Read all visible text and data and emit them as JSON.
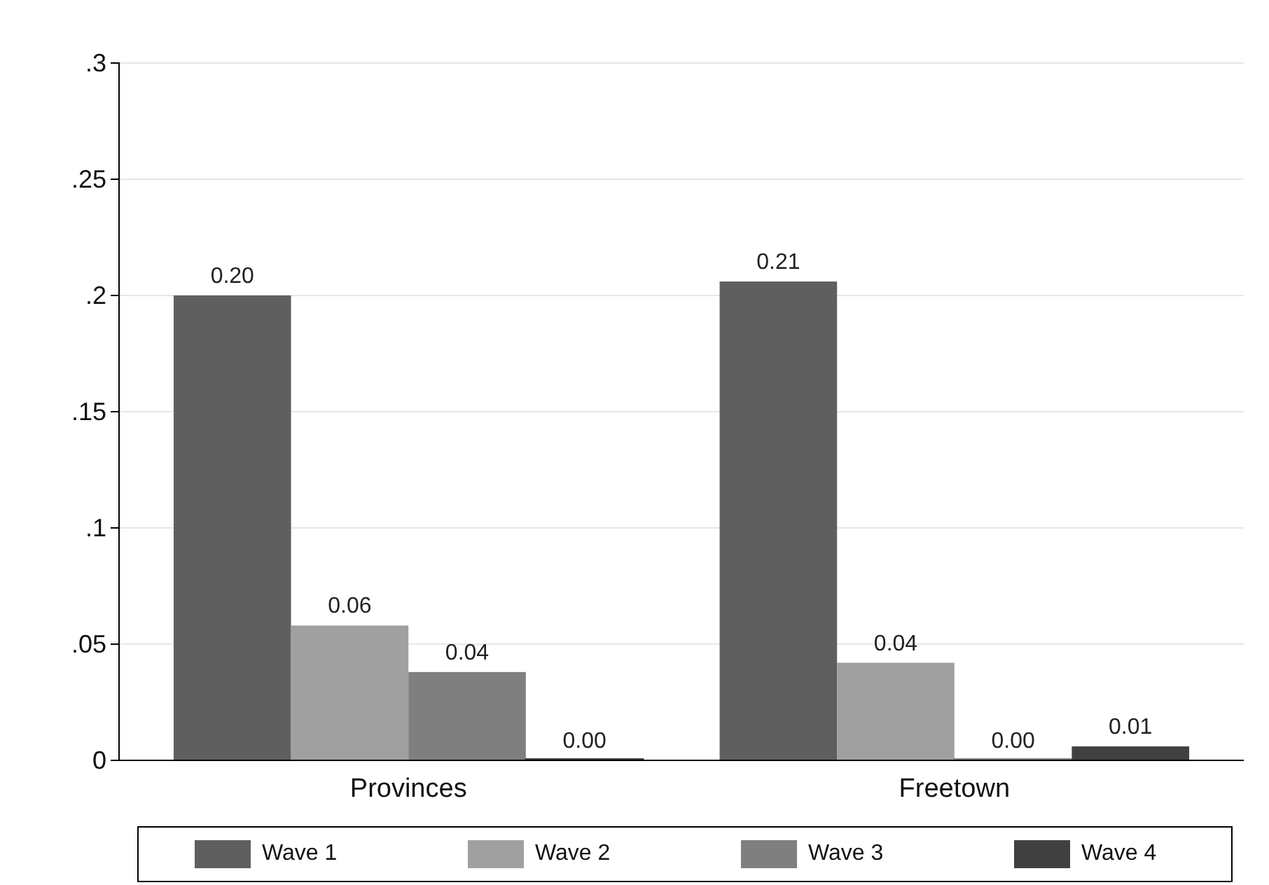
{
  "chart_data": {
    "type": "bar",
    "categories": [
      "Provinces",
      "Freetown"
    ],
    "series": [
      {
        "name": "Wave 1",
        "color": "#5f5f5f",
        "values": [
          0.2,
          0.206
        ],
        "value_labels": [
          "0.20",
          "0.21"
        ]
      },
      {
        "name": "Wave 2",
        "color": "#a0a0a0",
        "values": [
          0.058,
          0.042
        ],
        "value_labels": [
          "0.06",
          "0.04"
        ]
      },
      {
        "name": "Wave 3",
        "color": "#7f7f7f",
        "values": [
          0.038,
          0
        ],
        "value_labels": [
          "0.04",
          "0.00"
        ]
      },
      {
        "name": "Wave 4",
        "color": "#404040",
        "values": [
          0,
          0.006
        ],
        "value_labels": [
          "0.00",
          "0.01"
        ]
      }
    ],
    "ylim": [
      0,
      0.3
    ],
    "yticks": [
      {
        "value": 0,
        "label": "0"
      },
      {
        "value": 0.05,
        "label": ".05"
      },
      {
        "value": 0.1,
        "label": ".1"
      },
      {
        "value": 0.15,
        "label": ".15"
      },
      {
        "value": 0.2,
        "label": ".2"
      },
      {
        "value": 0.25,
        "label": ".25"
      },
      {
        "value": 0.3,
        "label": ".3"
      }
    ],
    "grid": "y",
    "legend": "bottom"
  }
}
